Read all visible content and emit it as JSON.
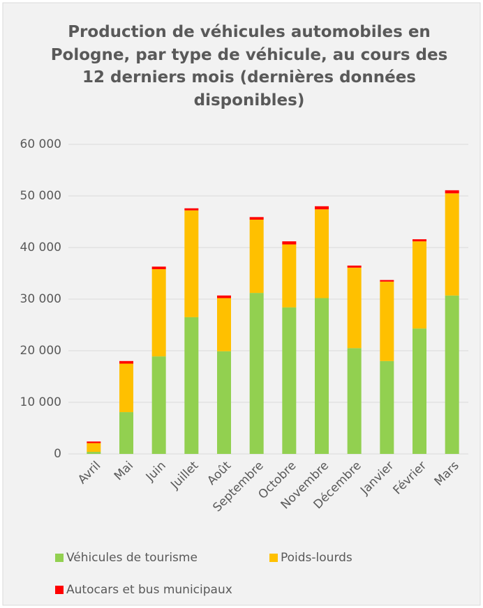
{
  "chart_data": {
    "type": "stacked_bar",
    "title": "Production de véhicules automobiles en Pologne, par type de véhicule, au cours des 12 derniers mois (dernières données disponibles)",
    "categories": [
      "Avril",
      "Mai",
      "Juin",
      "Juillet",
      "Août",
      "Septembre",
      "Octobre",
      "Novembre",
      "Décembre",
      "Janvier",
      "Février",
      "Mars"
    ],
    "series": [
      {
        "name": "Véhicules de tourisme",
        "color": "#92d050",
        "values": [
          400,
          8100,
          18900,
          26500,
          19900,
          31200,
          28400,
          30200,
          20500,
          18000,
          24300,
          30700
        ]
      },
      {
        "name": "Poids-lourds",
        "color": "#ffc000",
        "values": [
          1700,
          9400,
          16900,
          20700,
          10300,
          14200,
          12200,
          17200,
          15600,
          15400,
          16900,
          19800
        ]
      },
      {
        "name": "Autocars et bus municipaux",
        "color": "#ff0000",
        "values": [
          300,
          500,
          500,
          400,
          500,
          500,
          600,
          600,
          400,
          300,
          400,
          600
        ]
      }
    ],
    "ylim": [
      0,
      60000
    ],
    "yticks": [
      0,
      {
        "value": 10000,
        "label": "10 000"
      },
      {
        "value": 20000,
        "label": "20 000"
      },
      {
        "value": 30000,
        "label": "30 000"
      },
      {
        "value": 40000,
        "label": "40 000"
      },
      {
        "value": 50000,
        "label": "50 000"
      },
      {
        "value": 60000,
        "label": "60 000"
      }
    ],
    "grid": true
  }
}
